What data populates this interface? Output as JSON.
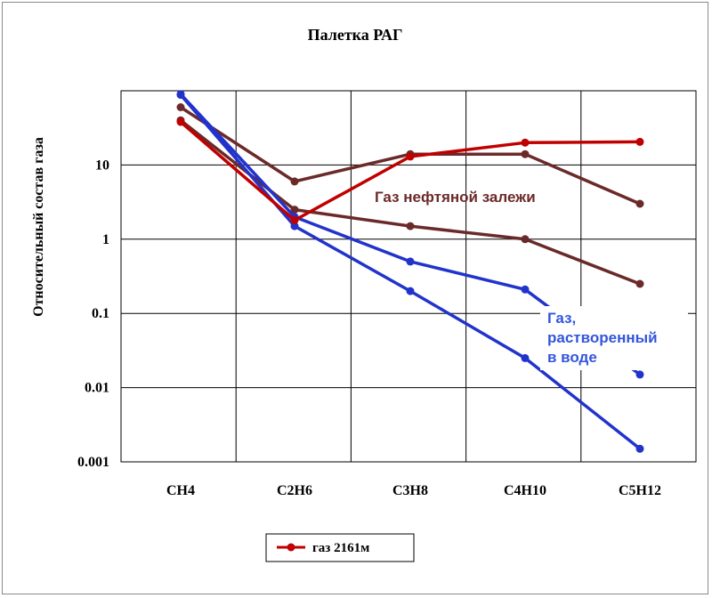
{
  "chart_data": {
    "type": "line",
    "title": "Палетка РАГ",
    "ylabel": "Относительный состав газа",
    "xlabel": "",
    "categories": [
      "CH4",
      "C2H6",
      "C3H8",
      "C4H10",
      "C5H12"
    ],
    "y_scale": "log",
    "ylim": [
      0.001,
      100
    ],
    "y_ticks": [
      {
        "value": 10,
        "label": "10"
      },
      {
        "value": 1,
        "label": "1"
      },
      {
        "value": 0.1,
        "label": "0.1"
      },
      {
        "value": 0.01,
        "label": "0.01"
      },
      {
        "value": 0.001,
        "label": "0.001"
      }
    ],
    "grid": true,
    "legend_position": "bottom",
    "series": [
      {
        "key": "oil_upper",
        "color": "#6b2a2a",
        "values": [
          60,
          6,
          14,
          14,
          3
        ]
      },
      {
        "key": "oil_lower",
        "color": "#6b2a2a",
        "values": [
          40,
          2.5,
          1.5,
          1.0,
          0.25
        ]
      },
      {
        "key": "water_upper",
        "color": "#2233cc",
        "values": [
          90,
          2.0,
          0.5,
          0.21,
          0.015
        ]
      },
      {
        "key": "water_lower",
        "color": "#2233cc",
        "values": [
          88,
          1.5,
          0.2,
          0.025,
          0.0015
        ]
      },
      {
        "key": "sample",
        "name": "газ 2161м",
        "color": "#c00000",
        "values": [
          38,
          1.8,
          13,
          20,
          20.5
        ]
      }
    ],
    "annotations": [
      {
        "key": "oil",
        "text": "Газ нефтяной залежи",
        "color": "#6b2a2a"
      },
      {
        "key": "water",
        "lines": [
          "Газ,",
          "растворенный",
          "в воде"
        ],
        "color": "#3355dd"
      }
    ],
    "legend_label": "газ 2161м"
  }
}
